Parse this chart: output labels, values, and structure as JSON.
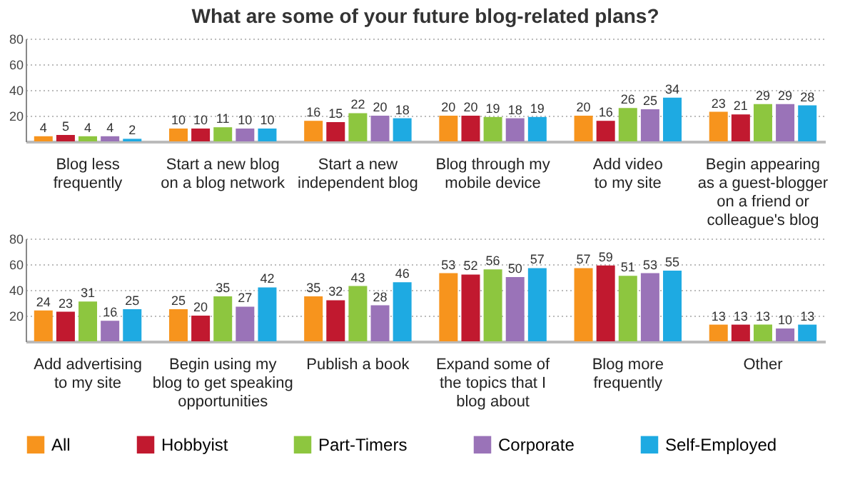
{
  "chart_data": [
    {
      "type": "bar",
      "title": "What are some of your future blog-related plans?",
      "categories": [
        "Blog less\nfrequently",
        "Start a new blog\non a blog network",
        "Start a new\nindependent blog",
        "Blog through my\nmobile device",
        "Add video\nto my site",
        "Begin appearing\nas a guest-blogger\non a friend or\ncolleague's blog"
      ],
      "ylim": [
        0,
        80
      ],
      "yticks": [
        20,
        40,
        60,
        80
      ],
      "grid": "y",
      "data_labels": true,
      "legend": "bottom",
      "series": [
        {
          "name": "All",
          "color": "#f7941d",
          "values": [
            4,
            10,
            16,
            20,
            20,
            23
          ]
        },
        {
          "name": "Hobbyist",
          "color": "#c1192f",
          "values": [
            5,
            10,
            15,
            20,
            16,
            21
          ]
        },
        {
          "name": "Part-Timers",
          "color": "#8dc63f",
          "values": [
            4,
            11,
            22,
            19,
            26,
            29
          ]
        },
        {
          "name": "Corporate",
          "color": "#9a73b8",
          "values": [
            4,
            10,
            20,
            18,
            25,
            29
          ]
        },
        {
          "name": "Self-Employed",
          "color": "#1eaae2",
          "values": [
            2,
            10,
            18,
            19,
            34,
            28
          ]
        }
      ]
    },
    {
      "type": "bar",
      "categories": [
        "Add advertising\nto my site",
        "Begin using my\nblog to get speaking\nopportunities",
        "Publish a book",
        "Expand some of\nthe topics that I\nblog about",
        "Blog more\nfrequently",
        "Other"
      ],
      "ylim": [
        0,
        80
      ],
      "yticks": [
        20,
        40,
        60,
        80
      ],
      "grid": "y",
      "data_labels": true,
      "legend": "bottom",
      "series": [
        {
          "name": "All",
          "color": "#f7941d",
          "values": [
            24,
            25,
            35,
            53,
            57,
            13
          ]
        },
        {
          "name": "Hobbyist",
          "color": "#c1192f",
          "values": [
            23,
            20,
            32,
            52,
            59,
            13
          ]
        },
        {
          "name": "Part-Timers",
          "color": "#8dc63f",
          "values": [
            31,
            35,
            43,
            56,
            51,
            13
          ]
        },
        {
          "name": "Corporate",
          "color": "#9a73b8",
          "values": [
            16,
            27,
            28,
            50,
            53,
            10
          ]
        },
        {
          "name": "Self-Employed",
          "color": "#1eaae2",
          "values": [
            25,
            42,
            46,
            57,
            55,
            13
          ]
        }
      ]
    }
  ]
}
